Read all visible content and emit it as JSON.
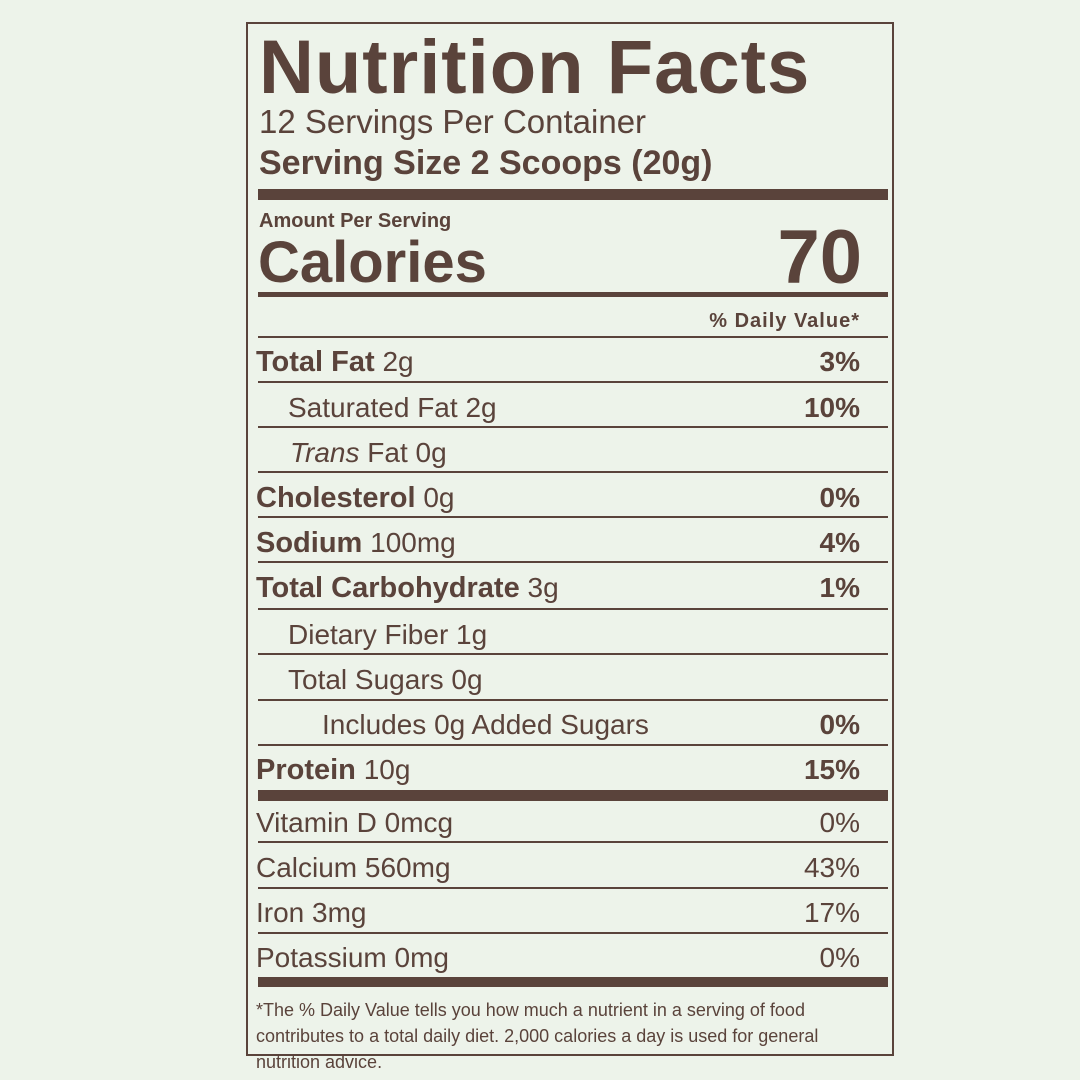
{
  "label": {
    "title": "Nutrition Facts",
    "servings_per_container": "12 Servings Per Container",
    "serving_size": "Serving Size 2 Scoops (20g)",
    "amount_per_serving": "Amount Per Serving",
    "calories_label": "Calories",
    "calories_value": "70",
    "daily_value_header": "% Daily Value*",
    "nutrients": [
      {
        "name": "Total Fat",
        "amount": "2g",
        "dv": "3%"
      },
      {
        "name": "Saturated Fat",
        "amount": "2g",
        "dv": "10%"
      },
      {
        "name_italic": "Trans",
        "name": "Fat",
        "amount": "0g",
        "dv": ""
      },
      {
        "name": "Cholesterol",
        "amount": "0g",
        "dv": "0%"
      },
      {
        "name": "Sodium",
        "amount": "100mg",
        "dv": "4%"
      },
      {
        "name": "Total Carbohydrate",
        "amount": "3g",
        "dv": "1%"
      },
      {
        "name": "Dietary Fiber",
        "amount": "1g",
        "dv": ""
      },
      {
        "name": "Total Sugars",
        "amount": "0g",
        "dv": ""
      },
      {
        "name": "Includes 0g Added Sugars",
        "amount": "",
        "dv": "0%"
      },
      {
        "name": "Protein",
        "amount": "10g",
        "dv": "15%"
      }
    ],
    "vitamins": [
      {
        "name": "Vitamin D 0mcg",
        "dv": "0%"
      },
      {
        "name": "Calcium 560mg",
        "dv": "43%"
      },
      {
        "name": "Iron 3mg",
        "dv": "17%"
      },
      {
        "name": "Potassium 0mg",
        "dv": "0%"
      }
    ],
    "footnote": "*The % Daily Value tells you how much a nutrient in a serving of food contributes to a total daily diet.  2,000 calories a day is used for general nutrition advice."
  },
  "colors": {
    "background": "#edf3ea",
    "ink": "#5a433b"
  }
}
